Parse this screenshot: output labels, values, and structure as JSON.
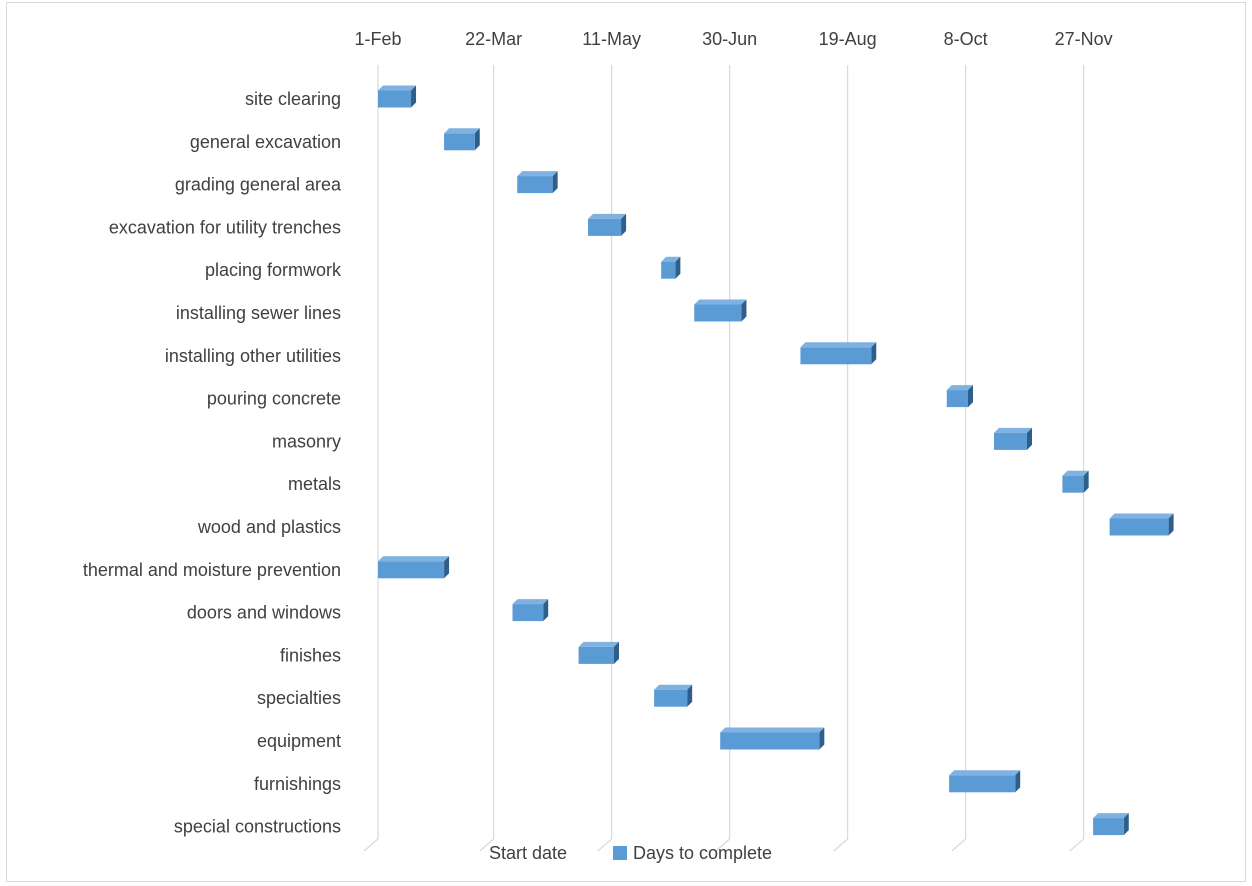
{
  "chart_data": {
    "type": "bar",
    "orientation": "horizontal-gantt",
    "x_axis": {
      "position": "top",
      "ticks": [
        "1-Feb",
        "22-Mar",
        "11-May",
        "30-Jun",
        "19-Aug",
        "8-Oct",
        "27-Nov"
      ],
      "grid": true
    },
    "categories": [
      "site clearing",
      "general excavation",
      "grading general area",
      "excavation for utility trenches",
      "placing formwork",
      "installing sewer lines",
      "installing other utilities",
      "pouring concrete",
      "masonry",
      "metals",
      "wood and plastics",
      "thermal and moisture prevention",
      "doors and windows",
      "finishes",
      "specialties",
      "equipment",
      "furnishings",
      "special constructions"
    ],
    "series": [
      {
        "name": "Start date",
        "color": "none",
        "values": [
          "1-Feb",
          "1-Mar",
          "1-Apr",
          "1-May",
          "1-Jun",
          "15-Jun",
          "30-Jul",
          "30-Sep",
          "20-Oct",
          "18-Nov",
          "8-Dec",
          "1-Feb",
          "30-Mar",
          "27-Apr",
          "29-May",
          "26-Jun",
          "1-Oct",
          "1-Dec"
        ]
      },
      {
        "name": "Days to complete",
        "color": "#5b9bd5",
        "values": [
          14,
          13,
          15,
          14,
          6,
          20,
          30,
          9,
          14,
          9,
          25,
          28,
          13,
          15,
          14,
          42,
          28,
          13
        ]
      }
    ],
    "legend": {
      "placement": "bottom",
      "entries": [
        "Start date",
        "Days to complete"
      ]
    }
  }
}
